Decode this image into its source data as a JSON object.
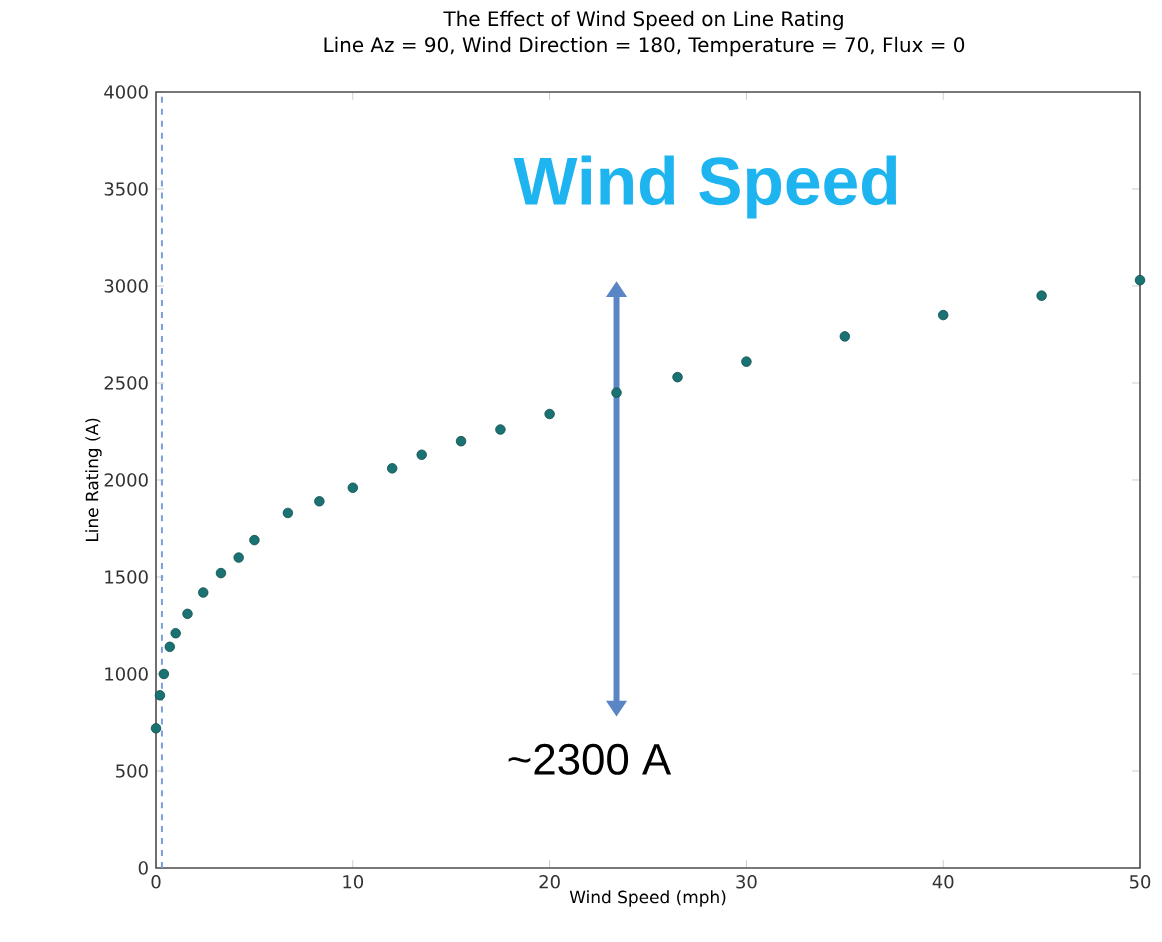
{
  "chart_data": {
    "type": "scatter",
    "title": "The Effect of Wind Speed on Line Rating",
    "subtitle": "Line Az = 90, Wind Direction = 180, Temperature = 70, Flux = 0",
    "xlabel": "Wind Speed (mph)",
    "ylabel": "Line Rating (A)",
    "x": [
      0,
      0.2,
      0.4,
      0.7,
      1,
      1.6,
      2.4,
      3.3,
      4.2,
      5,
      6.7,
      8.3,
      10,
      12,
      13.5,
      15.5,
      17.5,
      20,
      23.4,
      26.5,
      30,
      35,
      40,
      45,
      50
    ],
    "series": [
      {
        "color": "#1b7272",
        "values": [
          720,
          890,
          1000,
          1140,
          1210,
          1310,
          1420,
          1520,
          1600,
          1690,
          1830,
          1890,
          1960,
          2060,
          2130,
          2200,
          2260,
          2340,
          2450,
          2530,
          2610,
          2740,
          2850,
          2950,
          3030
        ]
      }
    ],
    "xlim": [
      0,
      50
    ],
    "ylim": [
      0,
      4000
    ],
    "xticks": [
      0,
      10,
      20,
      30,
      40,
      50
    ],
    "yticks": [
      0,
      500,
      1000,
      1500,
      2000,
      2500,
      3000,
      3500,
      4000
    ],
    "grid": false,
    "marker": "circle",
    "ref_lines": [
      {
        "axis": "x",
        "value": 0.3,
        "color": "#7a9fd8",
        "line_style": "dashed"
      }
    ],
    "annotations": [
      "Wind Speed",
      "~2300 A"
    ]
  }
}
